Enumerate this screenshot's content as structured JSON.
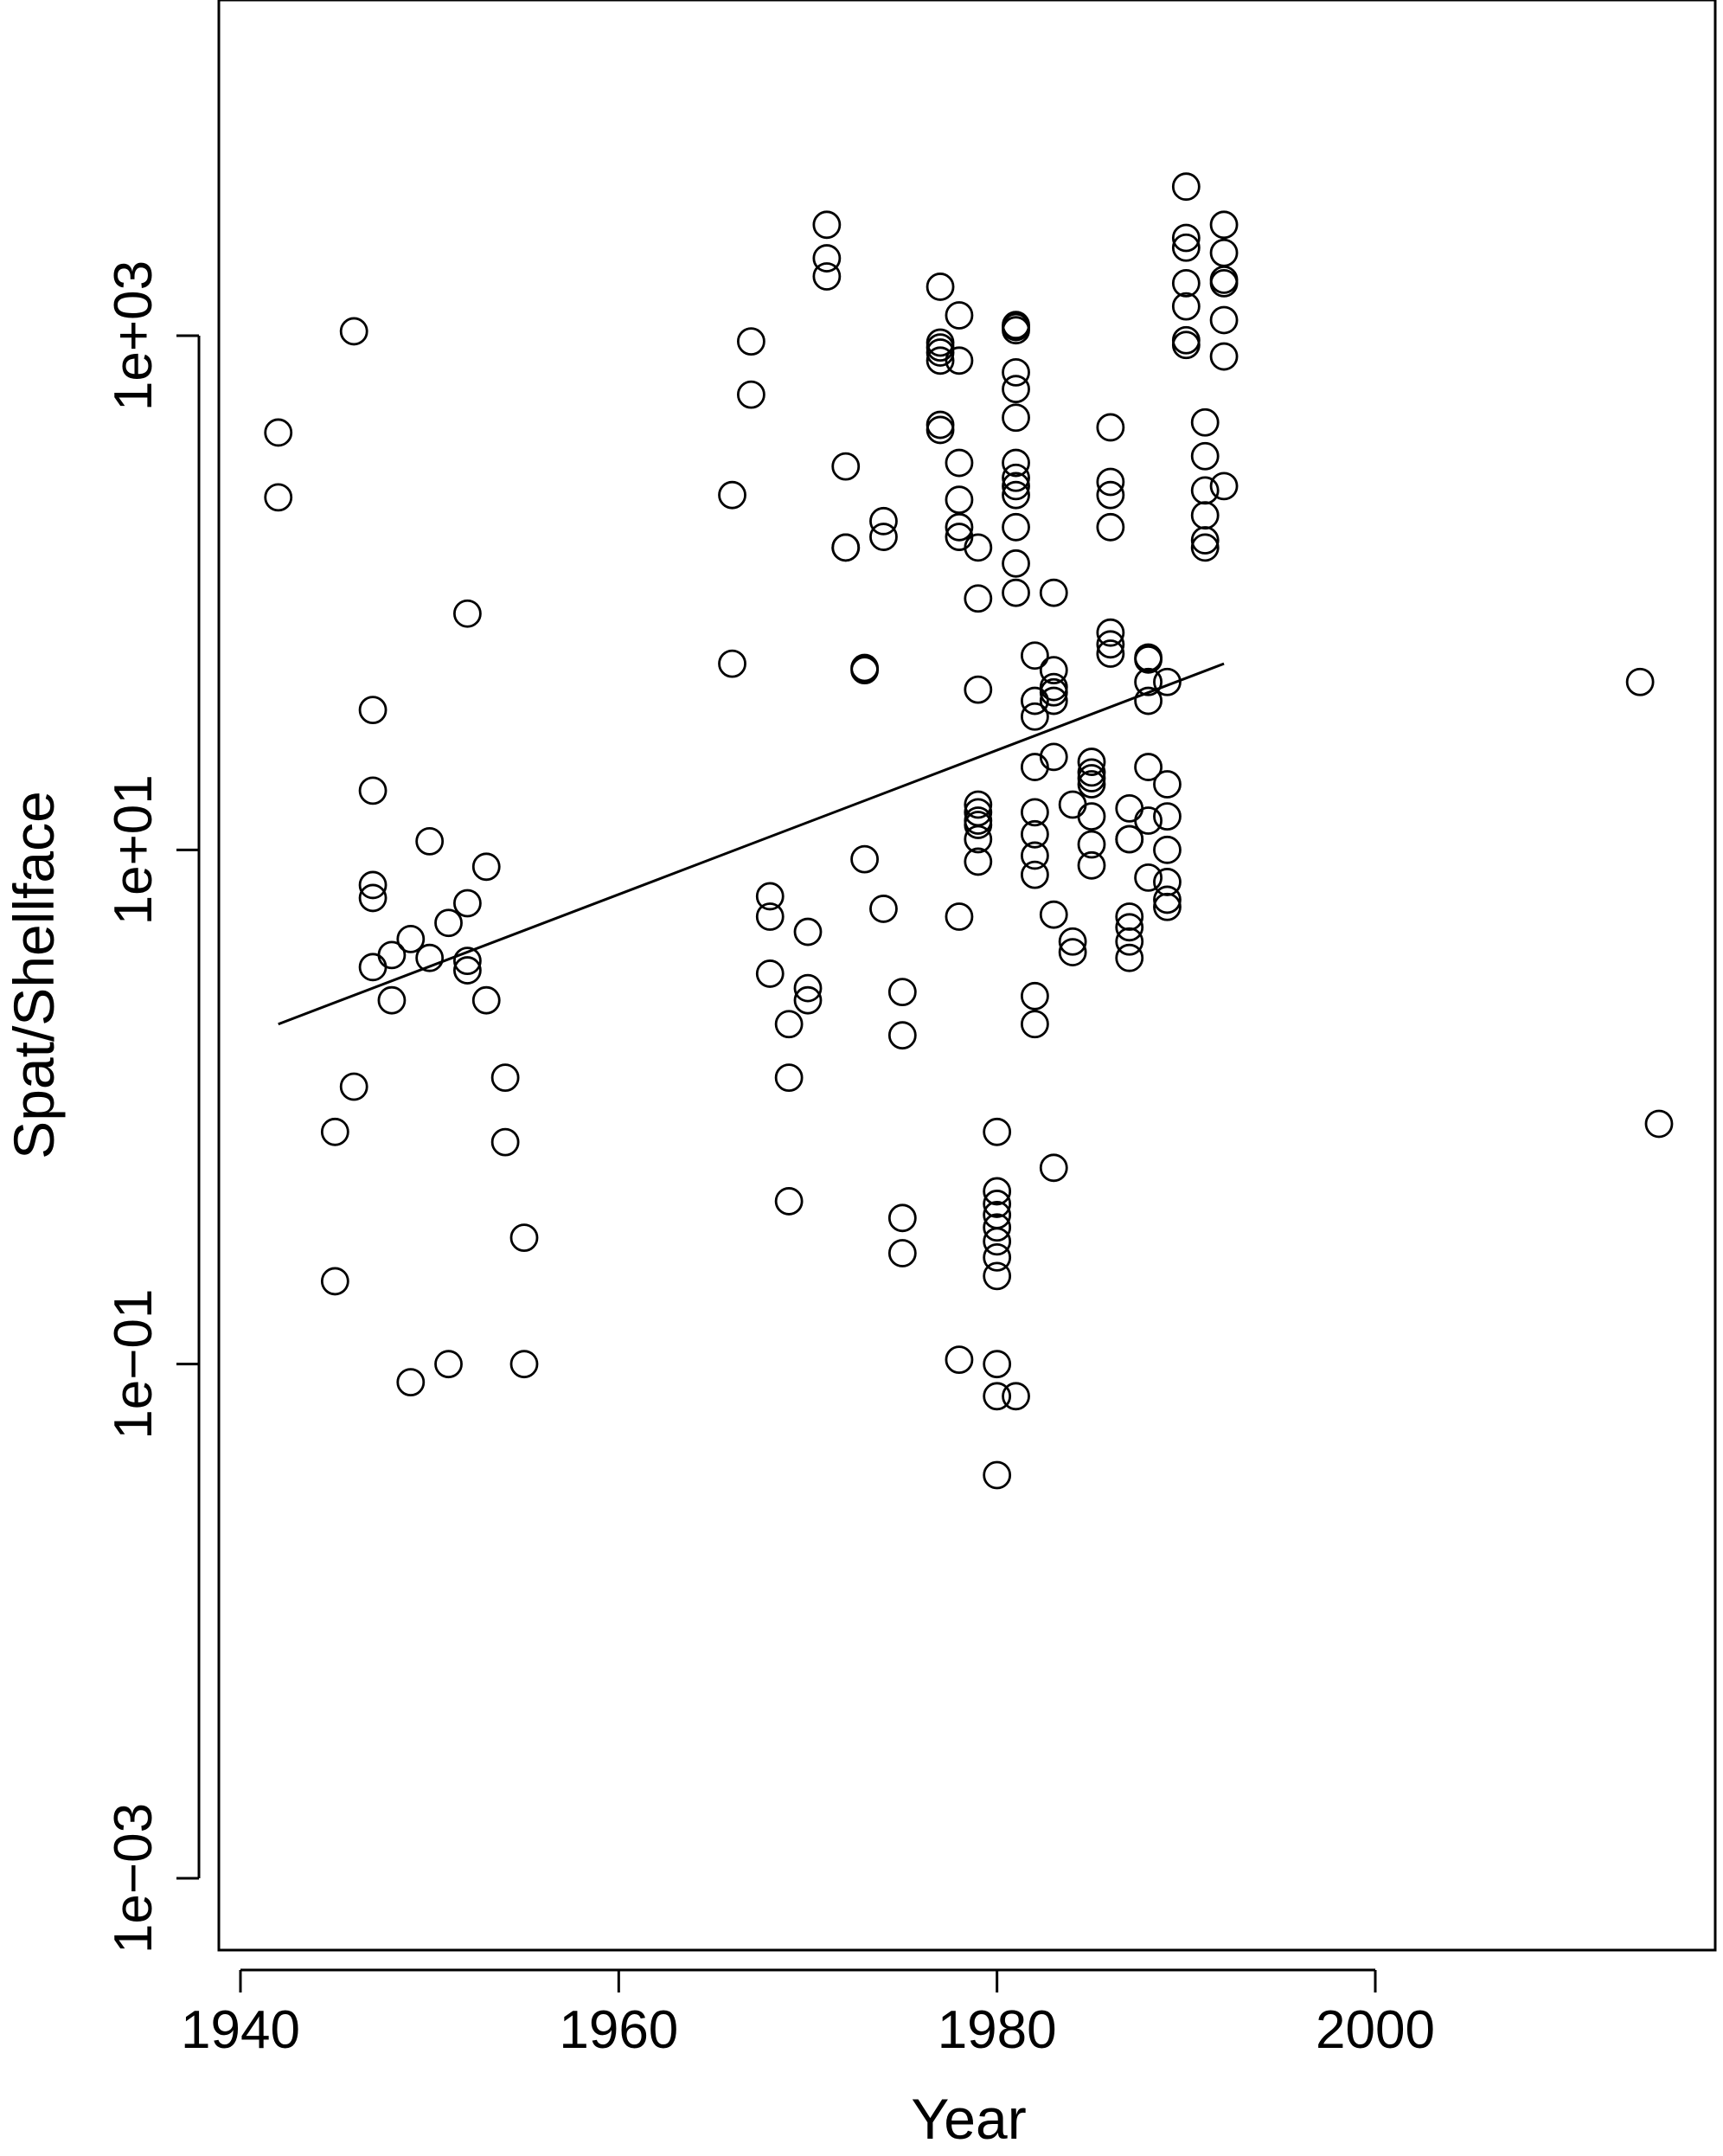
{
  "chart_data": {
    "type": "scatter",
    "title": "",
    "xlabel": "Year",
    "ylabel": "Spat/Shellface",
    "xlim": [
      1938,
      2018
    ],
    "ylim_log10": [
      -3.5,
      3.75
    ],
    "yscale": "log",
    "grid": false,
    "legend": "none",
    "xticks": [
      {
        "value": 1940,
        "label": "1940"
      },
      {
        "value": 1960,
        "label": "1960"
      },
      {
        "value": 1980,
        "label": "1980"
      },
      {
        "value": 2000,
        "label": "2000"
      }
    ],
    "yticks": [
      {
        "value": 0.001,
        "label": "1e−03"
      },
      {
        "value": 0.1,
        "label": "1e−01"
      },
      {
        "value": 10,
        "label": "1e+01"
      },
      {
        "value": 1000,
        "label": "1e+03"
      }
    ],
    "points": [
      [
        1942,
        420
      ],
      [
        1942,
        235
      ],
      [
        1945,
        0.8
      ],
      [
        1945,
        0.21
      ],
      [
        1946,
        1040
      ],
      [
        1946,
        1.2
      ],
      [
        1947,
        35
      ],
      [
        1947,
        17
      ],
      [
        1947,
        7.3
      ],
      [
        1947,
        6.5
      ],
      [
        1947,
        3.5
      ],
      [
        1948,
        3.9
      ],
      [
        1948,
        2.6
      ],
      [
        1949,
        4.5
      ],
      [
        1949,
        0.085
      ],
      [
        1950,
        10.8
      ],
      [
        1950,
        3.8
      ],
      [
        1951,
        5.2
      ],
      [
        1951,
        0.1
      ],
      [
        1952,
        83
      ],
      [
        1952,
        6.2
      ],
      [
        1952,
        3.7
      ],
      [
        1952,
        3.4
      ],
      [
        1953,
        8.6
      ],
      [
        1953,
        2.6
      ],
      [
        1954,
        1.3
      ],
      [
        1954,
        0.73
      ],
      [
        1955,
        0.31
      ],
      [
        1955,
        0.1
      ],
      [
        1966,
        240
      ],
      [
        1966,
        53
      ],
      [
        1967,
        950
      ],
      [
        1967,
        590
      ],
      [
        1968,
        6.6
      ],
      [
        1968,
        5.5
      ],
      [
        1968,
        3.3
      ],
      [
        1969,
        2.1
      ],
      [
        1969,
        1.3
      ],
      [
        1969,
        0.43
      ],
      [
        1970,
        4.8
      ],
      [
        1970,
        2.9
      ],
      [
        1970,
        2.6
      ],
      [
        1971,
        2700
      ],
      [
        1971,
        2000
      ],
      [
        1971,
        1700
      ],
      [
        1972,
        310
      ],
      [
        1972,
        150
      ],
      [
        1972,
        150
      ],
      [
        1973,
        9.2
      ],
      [
        1973,
        51
      ],
      [
        1973,
        50
      ],
      [
        1974,
        190
      ],
      [
        1974,
        165
      ],
      [
        1974,
        5.9
      ],
      [
        1975,
        2.8
      ],
      [
        1975,
        1.9
      ],
      [
        1975,
        0.37
      ],
      [
        1975,
        0.27
      ],
      [
        1977,
        1550
      ],
      [
        1977,
        940
      ],
      [
        1977,
        900
      ],
      [
        1977,
        860
      ],
      [
        1977,
        800
      ],
      [
        1977,
        450
      ],
      [
        1977,
        430
      ],
      [
        1978,
        1200
      ],
      [
        1978,
        800
      ],
      [
        1978,
        320
      ],
      [
        1978,
        230
      ],
      [
        1978,
        180
      ],
      [
        1978,
        165
      ],
      [
        1978,
        5.5
      ],
      [
        1978,
        0.104
      ],
      [
        1979,
        150
      ],
      [
        1979,
        95
      ],
      [
        1979,
        42
      ],
      [
        1979,
        15
      ],
      [
        1979,
        14
      ],
      [
        1979,
        13
      ],
      [
        1979,
        12.5
      ],
      [
        1979,
        11
      ],
      [
        1979,
        9
      ],
      [
        1980,
        0.8
      ],
      [
        1980,
        0.47
      ],
      [
        1980,
        0.42
      ],
      [
        1980,
        0.38
      ],
      [
        1980,
        0.34
      ],
      [
        1980,
        0.3
      ],
      [
        1980,
        0.26
      ],
      [
        1980,
        0.22
      ],
      [
        1980,
        0.1
      ],
      [
        1980,
        0.075
      ],
      [
        1980,
        0.037
      ],
      [
        1981,
        1100
      ],
      [
        1981,
        1080
      ],
      [
        1981,
        1050
      ],
      [
        1981,
        720
      ],
      [
        1981,
        620
      ],
      [
        1981,
        480
      ],
      [
        1981,
        320
      ],
      [
        1981,
        280
      ],
      [
        1981,
        260
      ],
      [
        1981,
        240
      ],
      [
        1981,
        180
      ],
      [
        1981,
        130
      ],
      [
        1981,
        100
      ],
      [
        1981,
        0.075
      ],
      [
        1982,
        57
      ],
      [
        1982,
        38
      ],
      [
        1982,
        33
      ],
      [
        1982,
        21
      ],
      [
        1982,
        14
      ],
      [
        1982,
        11.5
      ],
      [
        1982,
        9.5
      ],
      [
        1982,
        8
      ],
      [
        1982,
        2.7
      ],
      [
        1982,
        2.1
      ],
      [
        1983,
        100
      ],
      [
        1983,
        50
      ],
      [
        1983,
        43
      ],
      [
        1983,
        41
      ],
      [
        1983,
        38
      ],
      [
        1983,
        23
      ],
      [
        1983,
        5.6
      ],
      [
        1983,
        0.58
      ],
      [
        1984,
        15
      ],
      [
        1984,
        4.4
      ],
      [
        1984,
        4.0
      ],
      [
        1985,
        22
      ],
      [
        1985,
        20
      ],
      [
        1985,
        19
      ],
      [
        1985,
        18
      ],
      [
        1985,
        13.5
      ],
      [
        1985,
        10.5
      ],
      [
        1985,
        8.7
      ],
      [
        1986,
        440
      ],
      [
        1986,
        270
      ],
      [
        1986,
        240
      ],
      [
        1986,
        180
      ],
      [
        1986,
        70
      ],
      [
        1986,
        63
      ],
      [
        1986,
        58
      ],
      [
        1987,
        14.5
      ],
      [
        1987,
        11
      ],
      [
        1987,
        11
      ],
      [
        1987,
        5.5
      ],
      [
        1987,
        5.0
      ],
      [
        1987,
        4.4
      ],
      [
        1987,
        3.8
      ],
      [
        1988,
        56
      ],
      [
        1988,
        55
      ],
      [
        1988,
        45
      ],
      [
        1988,
        38
      ],
      [
        1988,
        21
      ],
      [
        1988,
        13
      ],
      [
        1988,
        7.8
      ],
      [
        1989,
        45
      ],
      [
        1989,
        18
      ],
      [
        1989,
        13.5
      ],
      [
        1989,
        10
      ],
      [
        1989,
        7.5
      ],
      [
        1989,
        6.4
      ],
      [
        1989,
        6.0
      ],
      [
        1990,
        3800
      ],
      [
        1990,
        2400
      ],
      [
        1990,
        2200
      ],
      [
        1990,
        1600
      ],
      [
        1990,
        1300
      ],
      [
        1990,
        960
      ],
      [
        1990,
        920
      ],
      [
        1991,
        460
      ],
      [
        1991,
        340
      ],
      [
        1991,
        250
      ],
      [
        1991,
        200
      ],
      [
        1991,
        160
      ],
      [
        1991,
        150
      ],
      [
        1992,
        2700
      ],
      [
        1992,
        2100
      ],
      [
        1992,
        1650
      ],
      [
        1992,
        1600
      ],
      [
        1992,
        1150
      ],
      [
        1992,
        830
      ],
      [
        1992,
        260
      ],
      [
        2014,
        45
      ],
      [
        2015,
        0.86
      ]
    ],
    "fit_line": [
      [
        1942,
        2.1
      ],
      [
        1992,
        53
      ]
    ]
  }
}
